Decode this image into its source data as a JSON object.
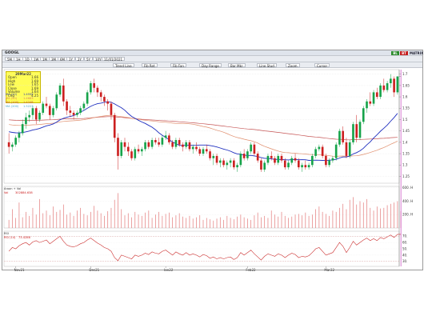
{
  "window": {
    "symbol": "GOOGL",
    "status_badges": [
      {
        "label": "BL",
        "color": "#2a8a2a"
      },
      {
        "label": "BT",
        "color": "#c41e1e"
      }
    ],
    "right_label": "MATRIX"
  },
  "toolbar": {
    "timeframe_buttons": [
      "5M",
      "1H",
      "1D",
      "1W",
      "1M",
      "3M",
      "6M",
      "1Y",
      "2Y",
      "5Y",
      "10Y"
    ],
    "date_range": "11/01/2021",
    "indicator_buttons": [
      "Trend Line",
      "Fib Ret",
      "Fib Fan",
      "Day Range",
      "Bar Mkr",
      "Line Stud",
      "Zoom",
      "Cursor"
    ]
  },
  "info_box": {
    "title": "29Mar22",
    "rows": [
      {
        "label": "Open",
        "value": "1.66"
      },
      {
        "label": "High",
        "value": "1.69"
      },
      {
        "label": "Low",
        "value": "1.65"
      },
      {
        "label": "Close",
        "value": "1.69"
      },
      {
        "label": "Volume",
        "value": "1.64"
      },
      {
        "label": "Chg",
        "value": "4.25"
      }
    ]
  },
  "ma_legend": [
    {
      "label": "MA (20)",
      "value": "1.4559",
      "color": "#2d3bb8"
    },
    {
      "label": "MA (50)",
      "value": "1.4683",
      "color": "#d9885a"
    },
    {
      "label": "MA (100)",
      "value": "1.4248",
      "color": "#c24d4d"
    },
    {
      "label": "MA (200)",
      "value": "1.5223",
      "color": "#3ea3c9"
    }
  ],
  "volume_panel": {
    "title": "Aroon + Vol",
    "legend": "Vol",
    "legend_value": "302884.638"
  },
  "rsi_panel": {
    "title": "RSI",
    "legend": "RSI (14)",
    "legend_value": "73.4286"
  },
  "colors": {
    "up": "#16a34a",
    "down": "#cc2020",
    "ma20": "#1f2fbf",
    "ma50": "#e08e6d",
    "ma100": "#c55454",
    "volume": "#e37a7a",
    "rsi": "#cc3030",
    "cursor": "#c02ab8"
  },
  "chart_data": {
    "type": "candlestick",
    "price_axis": {
      "ticks": [
        "1.7",
        "1.65",
        "1.6",
        "1.55",
        "1.5",
        "1.45",
        "1.4",
        "1.35",
        "1.3",
        "1.25"
      ],
      "ylim": [
        1.22,
        1.72
      ]
    },
    "volume_axis": {
      "ticks": [
        "600. H",
        "400. H",
        "200. H"
      ],
      "ylim": [
        0,
        620
      ]
    },
    "rsi_axis": {
      "ticks": [
        "70.",
        "60.",
        "50.",
        "40.",
        "30."
      ],
      "ylim": [
        22,
        78
      ]
    },
    "x_labels": [
      {
        "label": "Nov21",
        "index": 2
      },
      {
        "label": "Dec21",
        "index": 24
      },
      {
        "label": "Jan22",
        "index": 46
      },
      {
        "label": "Feb22",
        "index": 70
      },
      {
        "label": "Mar22",
        "index": 93
      }
    ],
    "cursor_index": 115,
    "candles": [
      [
        1.4,
        1.44,
        1.35,
        1.38
      ],
      [
        1.38,
        1.4,
        1.36,
        1.39
      ],
      [
        1.39,
        1.43,
        1.38,
        1.42
      ],
      [
        1.42,
        1.45,
        1.4,
        1.44
      ],
      [
        1.44,
        1.5,
        1.43,
        1.48
      ],
      [
        1.48,
        1.53,
        1.46,
        1.51
      ],
      [
        1.51,
        1.54,
        1.49,
        1.52
      ],
      [
        1.52,
        1.56,
        1.5,
        1.55
      ],
      [
        1.55,
        1.56,
        1.48,
        1.5
      ],
      [
        1.5,
        1.54,
        1.49,
        1.53
      ],
      [
        1.53,
        1.58,
        1.52,
        1.57
      ],
      [
        1.57,
        1.6,
        1.55,
        1.56
      ],
      [
        1.56,
        1.57,
        1.5,
        1.52
      ],
      [
        1.52,
        1.56,
        1.51,
        1.55
      ],
      [
        1.55,
        1.62,
        1.54,
        1.61
      ],
      [
        1.61,
        1.66,
        1.6,
        1.65
      ],
      [
        1.65,
        1.68,
        1.56,
        1.58
      ],
      [
        1.58,
        1.59,
        1.52,
        1.54
      ],
      [
        1.54,
        1.56,
        1.51,
        1.53
      ],
      [
        1.53,
        1.54,
        1.5,
        1.52
      ],
      [
        1.52,
        1.54,
        1.51,
        1.53
      ],
      [
        1.53,
        1.56,
        1.52,
        1.55
      ],
      [
        1.55,
        1.58,
        1.54,
        1.57
      ],
      [
        1.57,
        1.63,
        1.56,
        1.62
      ],
      [
        1.62,
        1.67,
        1.61,
        1.66
      ],
      [
        1.66,
        1.68,
        1.62,
        1.64
      ],
      [
        1.64,
        1.65,
        1.6,
        1.62
      ],
      [
        1.62,
        1.63,
        1.58,
        1.6
      ],
      [
        1.6,
        1.61,
        1.56,
        1.58
      ],
      [
        1.58,
        1.59,
        1.54,
        1.57
      ],
      [
        1.57,
        1.58,
        1.5,
        1.52
      ],
      [
        1.52,
        1.53,
        1.4,
        1.42
      ],
      [
        1.42,
        1.44,
        1.28,
        1.34
      ],
      [
        1.34,
        1.41,
        1.33,
        1.4
      ],
      [
        1.4,
        1.42,
        1.36,
        1.38
      ],
      [
        1.38,
        1.4,
        1.34,
        1.36
      ],
      [
        1.36,
        1.37,
        1.32,
        1.33
      ],
      [
        1.33,
        1.38,
        1.32,
        1.37
      ],
      [
        1.37,
        1.39,
        1.35,
        1.36
      ],
      [
        1.36,
        1.38,
        1.34,
        1.37
      ],
      [
        1.37,
        1.41,
        1.36,
        1.4
      ],
      [
        1.4,
        1.41,
        1.37,
        1.38
      ],
      [
        1.38,
        1.42,
        1.37,
        1.41
      ],
      [
        1.41,
        1.42,
        1.39,
        1.4
      ],
      [
        1.4,
        1.42,
        1.38,
        1.39
      ],
      [
        1.39,
        1.43,
        1.38,
        1.42
      ],
      [
        1.42,
        1.45,
        1.41,
        1.43
      ],
      [
        1.43,
        1.44,
        1.39,
        1.4
      ],
      [
        1.4,
        1.41,
        1.37,
        1.38
      ],
      [
        1.38,
        1.42,
        1.37,
        1.41
      ],
      [
        1.41,
        1.42,
        1.38,
        1.39
      ],
      [
        1.39,
        1.4,
        1.36,
        1.38
      ],
      [
        1.38,
        1.41,
        1.37,
        1.4
      ],
      [
        1.4,
        1.41,
        1.36,
        1.37
      ],
      [
        1.37,
        1.39,
        1.35,
        1.38
      ],
      [
        1.38,
        1.4,
        1.36,
        1.37
      ],
      [
        1.37,
        1.38,
        1.34,
        1.35
      ],
      [
        1.35,
        1.38,
        1.34,
        1.37
      ],
      [
        1.37,
        1.39,
        1.35,
        1.36
      ],
      [
        1.36,
        1.37,
        1.32,
        1.33
      ],
      [
        1.33,
        1.35,
        1.3,
        1.34
      ],
      [
        1.34,
        1.35,
        1.3,
        1.31
      ],
      [
        1.31,
        1.33,
        1.29,
        1.32
      ],
      [
        1.32,
        1.33,
        1.29,
        1.3
      ],
      [
        1.3,
        1.32,
        1.28,
        1.31
      ],
      [
        1.31,
        1.33,
        1.29,
        1.32
      ],
      [
        1.32,
        1.33,
        1.28,
        1.29
      ],
      [
        1.29,
        1.31,
        1.27,
        1.3
      ],
      [
        1.3,
        1.36,
        1.29,
        1.35
      ],
      [
        1.35,
        1.37,
        1.32,
        1.33
      ],
      [
        1.33,
        1.37,
        1.32,
        1.36
      ],
      [
        1.36,
        1.4,
        1.35,
        1.39
      ],
      [
        1.39,
        1.4,
        1.34,
        1.35
      ],
      [
        1.35,
        1.36,
        1.31,
        1.32
      ],
      [
        1.32,
        1.33,
        1.27,
        1.28
      ],
      [
        1.28,
        1.32,
        1.27,
        1.31
      ],
      [
        1.31,
        1.35,
        1.3,
        1.34
      ],
      [
        1.34,
        1.36,
        1.32,
        1.33
      ],
      [
        1.33,
        1.34,
        1.3,
        1.31
      ],
      [
        1.31,
        1.35,
        1.3,
        1.34
      ],
      [
        1.34,
        1.35,
        1.31,
        1.32
      ],
      [
        1.32,
        1.33,
        1.28,
        1.29
      ],
      [
        1.29,
        1.32,
        1.28,
        1.31
      ],
      [
        1.31,
        1.34,
        1.3,
        1.33
      ],
      [
        1.33,
        1.35,
        1.31,
        1.32
      ],
      [
        1.32,
        1.33,
        1.28,
        1.29
      ],
      [
        1.29,
        1.31,
        1.27,
        1.3
      ],
      [
        1.3,
        1.32,
        1.28,
        1.29
      ],
      [
        1.29,
        1.31,
        1.28,
        1.3
      ],
      [
        1.3,
        1.35,
        1.29,
        1.34
      ],
      [
        1.34,
        1.38,
        1.33,
        1.37
      ],
      [
        1.37,
        1.39,
        1.36,
        1.38
      ],
      [
        1.38,
        1.39,
        1.33,
        1.34
      ],
      [
        1.34,
        1.35,
        1.29,
        1.3
      ],
      [
        1.3,
        1.33,
        1.29,
        1.32
      ],
      [
        1.32,
        1.34,
        1.31,
        1.33
      ],
      [
        1.33,
        1.4,
        1.32,
        1.39
      ],
      [
        1.39,
        1.46,
        1.38,
        1.45
      ],
      [
        1.45,
        1.47,
        1.39,
        1.4
      ],
      [
        1.4,
        1.42,
        1.33,
        1.34
      ],
      [
        1.34,
        1.41,
        1.33,
        1.4
      ],
      [
        1.4,
        1.49,
        1.39,
        1.48
      ],
      [
        1.48,
        1.52,
        1.4,
        1.42
      ],
      [
        1.42,
        1.5,
        1.41,
        1.49
      ],
      [
        1.49,
        1.56,
        1.48,
        1.55
      ],
      [
        1.55,
        1.59,
        1.53,
        1.58
      ],
      [
        1.58,
        1.62,
        1.56,
        1.57
      ],
      [
        1.57,
        1.63,
        1.56,
        1.62
      ],
      [
        1.62,
        1.64,
        1.59,
        1.6
      ],
      [
        1.6,
        1.66,
        1.59,
        1.65
      ],
      [
        1.65,
        1.68,
        1.62,
        1.63
      ],
      [
        1.63,
        1.67,
        1.62,
        1.66
      ],
      [
        1.66,
        1.7,
        1.64,
        1.68
      ],
      [
        1.68,
        1.69,
        1.6,
        1.62
      ],
      [
        1.62,
        1.69,
        1.61,
        1.69
      ]
    ],
    "volume": [
      120,
      280,
      150,
      380,
      160,
      240,
      180,
      300,
      200,
      430,
      220,
      260,
      190,
      320,
      240,
      270,
      350,
      200,
      230,
      180,
      260,
      300,
      210,
      190,
      240,
      330,
      260,
      220,
      180,
      250,
      300,
      420,
      520,
      280,
      190,
      220,
      160,
      240,
      200,
      180,
      230,
      260,
      150,
      200,
      240,
      180,
      210,
      230,
      160,
      190,
      220,
      170,
      150,
      180,
      140,
      160,
      190,
      120,
      150,
      130,
      110,
      140,
      160,
      120,
      180,
      150,
      130,
      170,
      200,
      160,
      140,
      120,
      190,
      230,
      160,
      180,
      150,
      260,
      200,
      170,
      240,
      180,
      150,
      170,
      200,
      210,
      190,
      230,
      180,
      200,
      280,
      320,
      240,
      210,
      180,
      260,
      240,
      300,
      360,
      280,
      420,
      460,
      350,
      400,
      380,
      430,
      300,
      260,
      320,
      290,
      300,
      340,
      360,
      380,
      400,
      250
    ],
    "rsi": [
      46,
      52,
      50,
      55,
      58,
      60,
      56,
      61,
      63,
      60,
      62,
      64,
      58,
      62,
      66,
      70,
      62,
      56,
      54,
      53,
      55,
      58,
      60,
      64,
      67,
      63,
      59,
      56,
      52,
      50,
      46,
      36,
      31,
      40,
      38,
      36,
      34,
      40,
      38,
      40,
      43,
      41,
      45,
      43,
      42,
      46,
      48,
      44,
      40,
      45,
      42,
      40,
      44,
      40,
      42,
      40,
      37,
      41,
      39,
      35,
      37,
      34,
      36,
      34,
      36,
      37,
      33,
      36,
      44,
      40,
      44,
      48,
      42,
      37,
      32,
      38,
      42,
      40,
      38,
      42,
      40,
      36,
      40,
      43,
      41,
      36,
      38,
      37,
      39,
      44,
      50,
      52,
      46,
      40,
      42,
      44,
      52,
      60,
      54,
      44,
      52,
      62,
      56,
      60,
      64,
      67,
      63,
      66,
      63,
      68,
      66,
      69,
      72,
      68,
      73,
      73
    ]
  }
}
